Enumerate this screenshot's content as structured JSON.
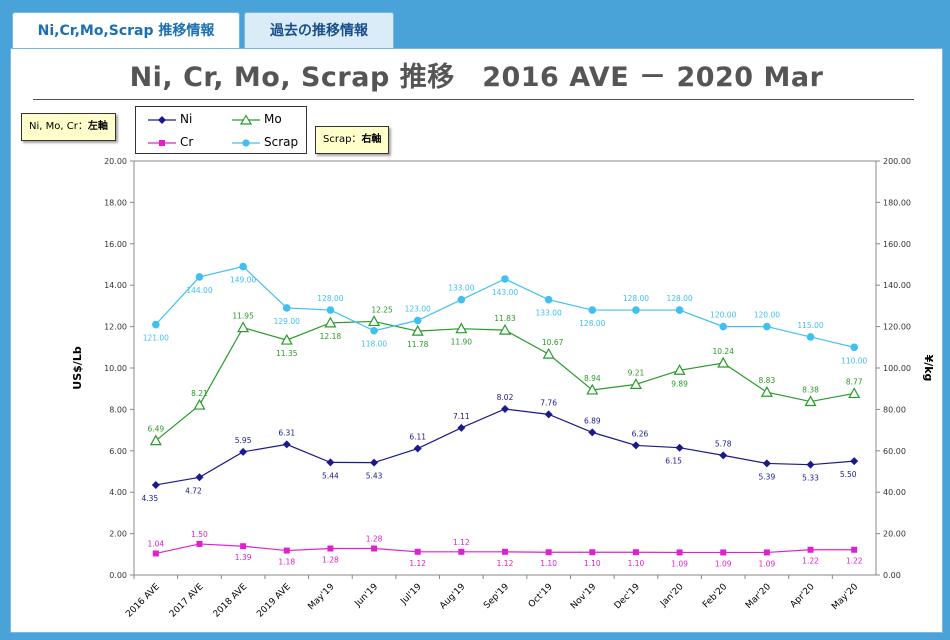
{
  "tabs": [
    {
      "label": "Ni,Cr,Mo,Scrap 推移情報",
      "active": true
    },
    {
      "label": "過去の推移情報",
      "active": false
    }
  ],
  "header": {
    "title": "Ni, Cr, Mo, Scrap 推移　2016 AVE － 2020 Mar"
  },
  "callouts": {
    "left_axis": {
      "prefix": "Ni, Mo, Cr：",
      "emph": "左軸"
    },
    "right_axis": {
      "prefix": "Scrap：",
      "emph": "右軸"
    }
  },
  "colors": {
    "Ni": "#1a1a8c",
    "Mo": "#2a9a2a",
    "Cr": "#e020d0",
    "Scrap": "#40c0f0"
  },
  "chart_data": {
    "type": "line",
    "categories": [
      "2016 AVE",
      "2017 AVE",
      "2018 AVE",
      "2019 AVE",
      "May'19",
      "Jun'19",
      "Jul'19",
      "Aug'19",
      "Sep'19",
      "Oct'19",
      "Nov'19",
      "Dec'19",
      "Jan'20",
      "Feb'20",
      "Mar'20",
      "Apr'20",
      "May'20"
    ],
    "ylabel": "US$/Lb",
    "y2label": "¥/kg",
    "ylim": [
      0,
      20
    ],
    "y2lim": [
      0,
      200
    ],
    "yticks": [
      "0.00",
      "2.00",
      "4.00",
      "6.00",
      "8.00",
      "10.00",
      "12.00",
      "14.00",
      "16.00",
      "18.00",
      "20.00"
    ],
    "y2ticks": [
      "0.00",
      "20.00",
      "40.00",
      "60.00",
      "80.00",
      "100.00",
      "120.00",
      "140.00",
      "160.00",
      "180.00",
      "200.00"
    ],
    "series": [
      {
        "name": "Ni",
        "axis": "left",
        "marker": "diamond",
        "values": [
          4.35,
          4.72,
          5.95,
          6.31,
          5.44,
          5.43,
          6.11,
          7.11,
          8.02,
          7.76,
          6.89,
          6.26,
          6.15,
          5.78,
          5.39,
          5.33,
          5.5
        ],
        "labels": [
          "4.35",
          "4.72",
          "5.95",
          "6.31",
          "5.44",
          "5.43",
          "6.11",
          "7.11",
          "8.02",
          "7.76",
          "6.89",
          "6.26",
          "6.15",
          "5.78",
          "5.39",
          "5.33",
          "5.50"
        ]
      },
      {
        "name": "Mo",
        "axis": "left",
        "marker": "triangle",
        "values": [
          6.49,
          8.21,
          11.95,
          11.35,
          12.18,
          12.25,
          11.78,
          11.9,
          11.83,
          10.67,
          8.94,
          9.21,
          9.89,
          10.24,
          8.83,
          8.38,
          8.77
        ],
        "labels": [
          "6.49",
          "8.21",
          "11.95",
          "11.35",
          "12.18",
          "12.25",
          "11.78",
          "11.90",
          "11.83",
          "10.67",
          "8.94",
          "9.21",
          "9.89",
          "10.24",
          "8.83",
          "8.38",
          "8.77"
        ]
      },
      {
        "name": "Cr",
        "axis": "left",
        "marker": "square",
        "values": [
          1.04,
          1.5,
          1.39,
          1.18,
          1.28,
          1.28,
          1.12,
          1.12,
          1.12,
          1.1,
          1.1,
          1.1,
          1.09,
          1.09,
          1.09,
          1.22,
          1.22
        ],
        "labels": [
          "1.04",
          "1.50",
          "1.39",
          "1.18",
          "1.28",
          "1.28",
          "1.12",
          "1.12",
          "1.12",
          "1.10",
          "1.10",
          "1.10",
          "1.09",
          "1.09",
          "1.09",
          "1.22",
          "1.22"
        ]
      },
      {
        "name": "Scrap",
        "axis": "right",
        "marker": "circle",
        "values": [
          121,
          144,
          149,
          129,
          128,
          118,
          123,
          133,
          143,
          133,
          128,
          128,
          128,
          120,
          120,
          115,
          110
        ],
        "labels": [
          "121.00",
          "144.00",
          "149.00",
          "129.00",
          "128.00",
          "118.00",
          "123.00",
          "133.00",
          "143.00",
          "133.00",
          "128.00",
          "128.00",
          "128.00",
          "120.00",
          "120.00",
          "115.00",
          "110.00"
        ]
      }
    ],
    "legend": "top-left"
  }
}
